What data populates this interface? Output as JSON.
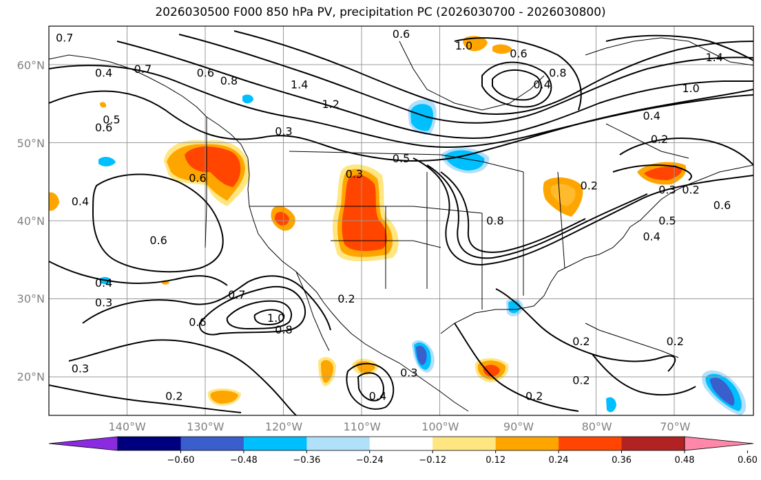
{
  "title": "2026030500 F000 850 hPa PV, precipitation PC (2026030700 - 2026030800)",
  "map": {
    "projection": "plate-carree",
    "lon_range": [
      -150,
      -60
    ],
    "lat_range": [
      15,
      65
    ],
    "lat_labels": [
      {
        "lat": 60,
        "text": "60°N"
      },
      {
        "lat": 50,
        "text": "50°N"
      },
      {
        "lat": 40,
        "text": "40°N"
      },
      {
        "lat": 30,
        "text": "30°N"
      },
      {
        "lat": 20,
        "text": "20°N"
      }
    ],
    "lon_labels": [
      {
        "lon": -140,
        "text": "140°W"
      },
      {
        "lon": -130,
        "text": "130°W"
      },
      {
        "lon": -120,
        "text": "120°W"
      },
      {
        "lon": -110,
        "text": "110°W"
      },
      {
        "lon": -100,
        "text": "100°W"
      },
      {
        "lon": -90,
        "text": "90°W"
      },
      {
        "lon": -80,
        "text": "80°W"
      },
      {
        "lon": -70,
        "text": "70°W"
      }
    ],
    "grid": true,
    "grid_color": "#999999",
    "coastline_color": "#000000"
  },
  "contour_labels": [
    {
      "lon": -148,
      "lat": 63.0,
      "text": "0.7"
    },
    {
      "lon": -143,
      "lat": 58.5,
      "text": "0.4"
    },
    {
      "lon": -138,
      "lat": 59.0,
      "text": "0.7"
    },
    {
      "lon": -130,
      "lat": 58.5,
      "text": "0.6"
    },
    {
      "lon": -127,
      "lat": 57.5,
      "text": "0.8"
    },
    {
      "lon": -118,
      "lat": 57.0,
      "text": "1.4"
    },
    {
      "lon": -114,
      "lat": 54.5,
      "text": "1.2"
    },
    {
      "lon": -120,
      "lat": 51.0,
      "text": "0.3"
    },
    {
      "lon": -142,
      "lat": 52.5,
      "text": "0.5"
    },
    {
      "lon": -143,
      "lat": 51.5,
      "text": "0.6"
    },
    {
      "lon": -131,
      "lat": 45.0,
      "text": "0.6"
    },
    {
      "lon": -146,
      "lat": 42.0,
      "text": "0.4"
    },
    {
      "lon": -111,
      "lat": 45.5,
      "text": "0.3"
    },
    {
      "lon": -105,
      "lat": 47.5,
      "text": "0.5"
    },
    {
      "lon": -136,
      "lat": 37.0,
      "text": "0.6"
    },
    {
      "lon": -143,
      "lat": 31.5,
      "text": "0.4"
    },
    {
      "lon": -143,
      "lat": 29.0,
      "text": "0.3"
    },
    {
      "lon": -126,
      "lat": 30.0,
      "text": "0.7"
    },
    {
      "lon": -131,
      "lat": 26.5,
      "text": "0.6"
    },
    {
      "lon": -121,
      "lat": 27.0,
      "text": "1.0"
    },
    {
      "lon": -120,
      "lat": 25.5,
      "text": "0.8"
    },
    {
      "lon": -112,
      "lat": 29.5,
      "text": "0.2"
    },
    {
      "lon": -146,
      "lat": 20.5,
      "text": "0.3"
    },
    {
      "lon": -134,
      "lat": 17.0,
      "text": "0.2"
    },
    {
      "lon": -108,
      "lat": 17.0,
      "text": "0.4"
    },
    {
      "lon": -104,
      "lat": 20.0,
      "text": "0.3"
    },
    {
      "lon": -105,
      "lat": 63.5,
      "text": "0.6"
    },
    {
      "lon": -97,
      "lat": 62.0,
      "text": "1.0"
    },
    {
      "lon": -90,
      "lat": 61.0,
      "text": "0.6"
    },
    {
      "lon": -87,
      "lat": 57.0,
      "text": "0.4"
    },
    {
      "lon": -85,
      "lat": 58.5,
      "text": "0.8"
    },
    {
      "lon": -65,
      "lat": 60.5,
      "text": "1.4"
    },
    {
      "lon": -68,
      "lat": 56.5,
      "text": "1.0"
    },
    {
      "lon": -73,
      "lat": 53.0,
      "text": "0.4"
    },
    {
      "lon": -72,
      "lat": 50.0,
      "text": "0.2"
    },
    {
      "lon": -81,
      "lat": 44.0,
      "text": "0.2"
    },
    {
      "lon": -71,
      "lat": 43.5,
      "text": "0.3"
    },
    {
      "lon": -68,
      "lat": 43.5,
      "text": "0.2"
    },
    {
      "lon": -64,
      "lat": 41.5,
      "text": "0.6"
    },
    {
      "lon": -71,
      "lat": 39.5,
      "text": "0.5"
    },
    {
      "lon": -73,
      "lat": 37.5,
      "text": "0.4"
    },
    {
      "lon": -93,
      "lat": 39.5,
      "text": "0.8"
    },
    {
      "lon": -82,
      "lat": 24.0,
      "text": "0.2"
    },
    {
      "lon": -70,
      "lat": 24.0,
      "text": "0.2"
    },
    {
      "lon": -88,
      "lat": 17.0,
      "text": "0.2"
    },
    {
      "lon": -82,
      "lat": 19.0,
      "text": "0.2"
    }
  ],
  "colorbar": {
    "colors": [
      "#8b2be0",
      "#00007f",
      "#3a5fcd",
      "#00bfff",
      "#b0e0fa",
      "#ffffff",
      "#ffe680",
      "#ffa500",
      "#ff4500",
      "#b22222",
      "#ff88aa"
    ],
    "ticks": [
      "−0.60",
      "−0.48",
      "−0.36",
      "−0.24",
      "−0.12",
      "0.12",
      "0.24",
      "0.36",
      "0.48",
      "0.60"
    ]
  }
}
